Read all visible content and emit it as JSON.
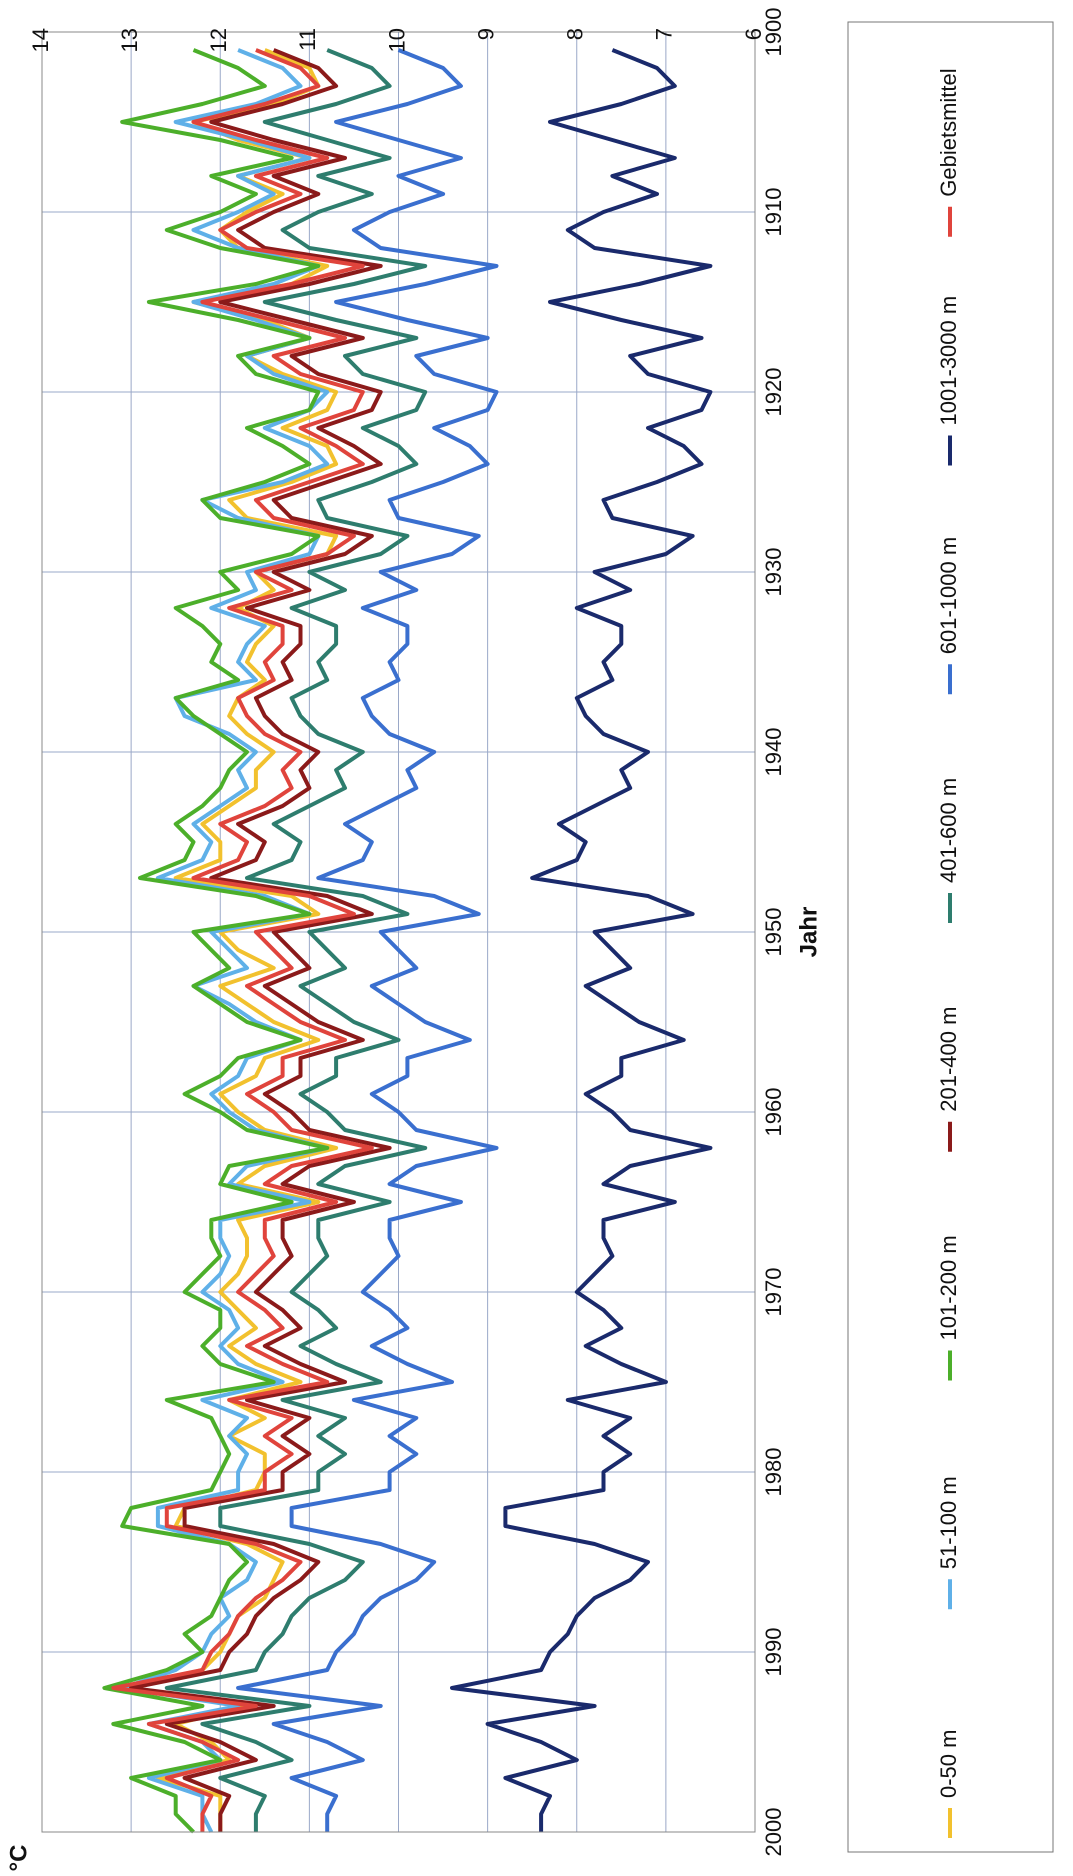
{
  "chart_data": {
    "type": "line",
    "xlabel": "Jahr",
    "ylabel": "°C",
    "xlim": [
      1900,
      2000
    ],
    "ylim": [
      6,
      14
    ],
    "xticks": [
      "1900",
      "1910",
      "1920",
      "1930",
      "1940",
      "1950",
      "1960",
      "1970",
      "1980",
      "1990",
      "2000"
    ],
    "yticks": [
      "6",
      "7",
      "8",
      "9",
      "10",
      "11",
      "12",
      "13",
      "14"
    ],
    "grid": true,
    "legend_position": "bottom",
    "x": [
      1901,
      1902,
      1903,
      1904,
      1905,
      1906,
      1907,
      1908,
      1909,
      1910,
      1911,
      1912,
      1913,
      1914,
      1915,
      1916,
      1917,
      1918,
      1919,
      1920,
      1921,
      1922,
      1923,
      1924,
      1925,
      1926,
      1927,
      1928,
      1929,
      1930,
      1931,
      1932,
      1933,
      1934,
      1935,
      1936,
      1937,
      1938,
      1939,
      1940,
      1941,
      1942,
      1943,
      1944,
      1945,
      1946,
      1947,
      1948,
      1949,
      1950,
      1951,
      1952,
      1953,
      1954,
      1955,
      1956,
      1957,
      1958,
      1959,
      1960,
      1961,
      1962,
      1963,
      1964,
      1965,
      1966,
      1967,
      1968,
      1969,
      1970,
      1971,
      1972,
      1973,
      1974,
      1975,
      1976,
      1977,
      1978,
      1979,
      1980,
      1981,
      1982,
      1983,
      1984,
      1985,
      1986,
      1987,
      1988,
      1989,
      1990,
      1991,
      1992,
      1993,
      1994,
      1995,
      1996,
      1997,
      1998,
      1999,
      2000
    ],
    "series": [
      {
        "name": "0-50 m",
        "color": "#f2c12e",
        "values": [
          11.5,
          11.0,
          10.9,
          11.4,
          12.3,
          11.8,
          11.0,
          11.8,
          11.3,
          11.7,
          12.0,
          11.8,
          10.8,
          11.2,
          12.3,
          11.5,
          11.0,
          11.7,
          11.3,
          10.7,
          10.8,
          11.3,
          10.8,
          10.7,
          11.2,
          11.9,
          11.7,
          10.7,
          10.8,
          11.6,
          11.4,
          11.8,
          11.4,
          11.6,
          11.7,
          11.5,
          11.8,
          11.9,
          11.7,
          11.4,
          11.6,
          11.6,
          11.9,
          12.2,
          12.0,
          12.0,
          12.5,
          11.2,
          10.9,
          12.0,
          11.8,
          11.4,
          12.0,
          11.7,
          11.4,
          10.9,
          11.5,
          11.6,
          12.0,
          11.8,
          11.5,
          10.7,
          11.5,
          11.8,
          10.9,
          11.8,
          11.7,
          11.7,
          11.8,
          12.0,
          11.8,
          11.6,
          11.9,
          11.6,
          11.1,
          11.9,
          11.5,
          11.9,
          11.5,
          11.5,
          11.6,
          12.4,
          12.5,
          11.7,
          11.3,
          11.4,
          11.5,
          11.8,
          11.9,
          12.0,
          12.2,
          13.0,
          11.7,
          12.5,
          12.1,
          11.9,
          12.7,
          12.0,
          12.0,
          12.0
        ]
      },
      {
        "name": "51-100 m",
        "color": "#5fb0e8",
        "values": [
          11.8,
          11.3,
          11.1,
          11.6,
          12.5,
          11.7,
          11.0,
          11.8,
          11.4,
          11.8,
          12.3,
          11.8,
          10.9,
          11.4,
          12.3,
          11.6,
          11.0,
          11.7,
          11.4,
          10.8,
          11.0,
          11.5,
          11.0,
          10.8,
          11.3,
          12.2,
          11.8,
          10.9,
          11.0,
          11.7,
          11.6,
          12.1,
          11.5,
          11.7,
          11.8,
          11.6,
          12.5,
          12.4,
          11.9,
          11.6,
          11.8,
          11.7,
          12.0,
          12.3,
          12.1,
          12.2,
          12.7,
          11.5,
          11.0,
          12.1,
          11.9,
          11.7,
          12.3,
          11.9,
          11.6,
          11.1,
          11.7,
          11.8,
          12.1,
          11.9,
          11.6,
          10.8,
          11.7,
          11.9,
          11.0,
          12.0,
          12.0,
          11.9,
          12.0,
          12.2,
          11.9,
          11.8,
          12.0,
          11.8,
          11.3,
          12.2,
          11.7,
          11.9,
          11.7,
          11.8,
          11.8,
          12.7,
          12.7,
          11.9,
          11.6,
          11.7,
          12.0,
          11.9,
          12.1,
          12.2,
          12.5,
          13.1,
          11.8,
          12.8,
          12.2,
          12.0,
          12.8,
          12.2,
          12.2,
          12.1
        ]
      },
      {
        "name": "101-200 m",
        "color": "#4caf2a",
        "values": [
          12.3,
          11.8,
          11.5,
          12.2,
          13.1,
          12.0,
          11.2,
          12.1,
          11.6,
          12.0,
          12.6,
          12.0,
          10.9,
          11.6,
          12.8,
          11.8,
          11.0,
          11.8,
          11.6,
          10.9,
          11.0,
          11.7,
          11.3,
          11.0,
          11.5,
          12.2,
          12.0,
          10.9,
          11.2,
          12.0,
          11.8,
          12.5,
          12.2,
          12.0,
          12.1,
          11.8,
          12.5,
          12.3,
          12.0,
          11.7,
          11.9,
          12.0,
          12.2,
          12.5,
          12.3,
          12.4,
          12.9,
          11.6,
          11.0,
          12.3,
          12.1,
          11.9,
          12.3,
          12.0,
          11.7,
          11.1,
          11.8,
          12.0,
          12.4,
          12.0,
          11.7,
          10.8,
          11.9,
          12.0,
          11.2,
          12.1,
          12.1,
          12.0,
          12.2,
          12.4,
          12.0,
          12.0,
          12.2,
          12.0,
          11.4,
          12.6,
          12.1,
          12.0,
          11.9,
          12.0,
          12.1,
          13.0,
          13.1,
          11.9,
          11.7,
          11.9,
          12.0,
          12.1,
          12.4,
          12.2,
          12.6,
          13.3,
          12.2,
          13.2,
          12.4,
          12.0,
          13.0,
          12.5,
          12.5,
          12.3
        ]
      },
      {
        "name": "201-400 m",
        "color": "#8b1a1a",
        "values": [
          11.4,
          10.9,
          10.7,
          11.3,
          12.1,
          11.4,
          10.6,
          11.4,
          10.9,
          11.4,
          11.8,
          11.5,
          10.2,
          11.0,
          12.0,
          11.2,
          10.4,
          11.2,
          10.9,
          10.2,
          10.3,
          10.9,
          10.5,
          10.2,
          10.8,
          11.4,
          11.2,
          10.3,
          10.6,
          11.4,
          11.0,
          11.7,
          11.1,
          11.1,
          11.3,
          11.2,
          11.6,
          11.5,
          11.3,
          10.9,
          11.1,
          11.0,
          11.3,
          11.8,
          11.5,
          11.6,
          12.1,
          10.8,
          10.3,
          11.4,
          11.2,
          11.0,
          11.5,
          11.2,
          10.9,
          10.4,
          11.1,
          11.1,
          11.5,
          11.2,
          11.0,
          10.1,
          11.0,
          11.3,
          10.5,
          11.3,
          11.3,
          11.2,
          11.4,
          11.6,
          11.3,
          11.1,
          11.5,
          11.1,
          10.6,
          11.7,
          11.0,
          11.3,
          11.0,
          11.3,
          11.3,
          12.4,
          12.4,
          11.4,
          10.9,
          11.1,
          11.4,
          11.6,
          11.7,
          11.9,
          12.0,
          13.0,
          11.4,
          12.6,
          12.0,
          11.6,
          12.4,
          11.9,
          12.0,
          12.0
        ]
      },
      {
        "name": "401-600 m",
        "color": "#2e7d6e",
        "values": [
          10.8,
          10.3,
          10.1,
          10.7,
          11.5,
          10.8,
          10.1,
          10.9,
          10.3,
          10.9,
          11.3,
          11.0,
          9.7,
          10.5,
          11.5,
          10.7,
          9.8,
          10.6,
          10.4,
          9.7,
          9.8,
          10.4,
          10.0,
          9.8,
          10.3,
          10.9,
          10.8,
          9.9,
          10.2,
          11.0,
          10.6,
          11.2,
          10.7,
          10.7,
          10.9,
          10.8,
          11.2,
          11.1,
          10.9,
          10.4,
          10.7,
          10.6,
          11.0,
          11.4,
          11.1,
          11.2,
          11.7,
          10.4,
          9.9,
          11.0,
          10.8,
          10.6,
          11.1,
          10.8,
          10.5,
          10.0,
          10.7,
          10.7,
          11.1,
          10.8,
          10.6,
          9.7,
          10.6,
          10.9,
          10.1,
          10.9,
          10.9,
          10.8,
          11.0,
          11.2,
          10.9,
          10.7,
          11.1,
          10.7,
          10.2,
          11.3,
          10.6,
          10.9,
          10.6,
          10.9,
          10.9,
          12.0,
          12.0,
          11.0,
          10.4,
          10.6,
          11.0,
          11.2,
          11.3,
          11.5,
          11.6,
          12.6,
          11.0,
          12.2,
          11.6,
          11.2,
          12.0,
          11.5,
          11.6,
          11.6
        ]
      },
      {
        "name": "601-1000 m",
        "color": "#3a6fcf",
        "values": [
          10.0,
          9.5,
          9.3,
          9.9,
          10.7,
          10.0,
          9.3,
          10.0,
          9.5,
          10.1,
          10.5,
          10.2,
          8.9,
          9.7,
          10.7,
          9.9,
          9.0,
          9.8,
          9.6,
          8.9,
          9.0,
          9.6,
          9.2,
          9.0,
          9.5,
          10.1,
          10.0,
          9.1,
          9.4,
          10.2,
          9.8,
          10.4,
          9.9,
          9.9,
          10.1,
          10.0,
          10.4,
          10.3,
          10.1,
          9.6,
          9.9,
          9.8,
          10.2,
          10.6,
          10.3,
          10.4,
          10.9,
          9.6,
          9.1,
          10.2,
          10.0,
          9.8,
          10.3,
          10.0,
          9.7,
          9.2,
          9.9,
          9.9,
          10.3,
          10.0,
          9.8,
          8.9,
          9.8,
          10.1,
          9.3,
          10.1,
          10.1,
          10.0,
          10.2,
          10.4,
          10.1,
          9.9,
          10.3,
          9.9,
          9.4,
          10.5,
          9.8,
          10.1,
          9.8,
          10.1,
          10.1,
          11.2,
          11.2,
          10.2,
          9.6,
          9.8,
          10.2,
          10.4,
          10.5,
          10.7,
          10.8,
          11.8,
          10.2,
          11.4,
          10.8,
          10.4,
          11.2,
          10.7,
          10.8,
          10.8
        ]
      },
      {
        "name": "1001-3000 m",
        "color": "#1a2a6c",
        "values": [
          7.6,
          7.1,
          6.9,
          7.5,
          8.3,
          7.6,
          6.9,
          7.6,
          7.1,
          7.7,
          8.1,
          7.8,
          6.5,
          7.3,
          8.3,
          7.5,
          6.6,
          7.4,
          7.2,
          6.5,
          6.6,
          7.2,
          6.8,
          6.6,
          7.1,
          7.7,
          7.6,
          6.7,
          7.0,
          7.8,
          7.4,
          8.0,
          7.5,
          7.5,
          7.7,
          7.6,
          8.0,
          7.9,
          7.7,
          7.2,
          7.5,
          7.4,
          7.8,
          8.2,
          7.9,
          8.0,
          8.5,
          7.2,
          6.7,
          7.8,
          7.6,
          7.4,
          7.9,
          7.6,
          7.3,
          6.8,
          7.5,
          7.5,
          7.9,
          7.6,
          7.4,
          6.5,
          7.4,
          7.7,
          6.9,
          7.7,
          7.7,
          7.6,
          7.8,
          8.0,
          7.7,
          7.5,
          7.9,
          7.5,
          7.0,
          8.1,
          7.4,
          7.7,
          7.4,
          7.7,
          7.7,
          8.8,
          8.8,
          7.8,
          7.2,
          7.4,
          7.8,
          8.0,
          8.1,
          8.3,
          8.4,
          9.4,
          7.8,
          9.0,
          8.4,
          8.0,
          8.8,
          8.3,
          8.4,
          8.4
        ]
      },
      {
        "name": "Gebietsmittel",
        "color": "#e0443c",
        "values": [
          11.6,
          11.1,
          10.9,
          11.5,
          12.3,
          11.6,
          10.8,
          11.6,
          11.1,
          11.6,
          12.0,
          11.7,
          10.4,
          11.2,
          12.2,
          11.4,
          10.6,
          11.4,
          11.1,
          10.4,
          10.5,
          11.1,
          10.7,
          10.4,
          11.0,
          11.6,
          11.4,
          10.5,
          10.8,
          11.6,
          11.2,
          11.9,
          11.3,
          11.3,
          11.5,
          11.4,
          11.8,
          11.7,
          11.5,
          11.1,
          11.3,
          11.2,
          11.5,
          12.0,
          11.7,
          11.8,
          12.3,
          11.0,
          10.5,
          11.6,
          11.4,
          11.2,
          11.7,
          11.4,
          11.1,
          10.6,
          11.3,
          11.3,
          11.7,
          11.4,
          11.2,
          10.3,
          11.2,
          11.5,
          10.7,
          11.5,
          11.5,
          11.4,
          11.6,
          11.8,
          11.5,
          11.3,
          11.7,
          11.3,
          10.8,
          11.9,
          11.2,
          11.5,
          11.2,
          11.5,
          11.5,
          12.6,
          12.6,
          11.6,
          11.1,
          11.3,
          11.6,
          11.8,
          11.9,
          12.1,
          12.2,
          13.2,
          11.6,
          12.8,
          12.2,
          11.8,
          12.6,
          12.1,
          12.2,
          12.2
        ]
      }
    ]
  }
}
